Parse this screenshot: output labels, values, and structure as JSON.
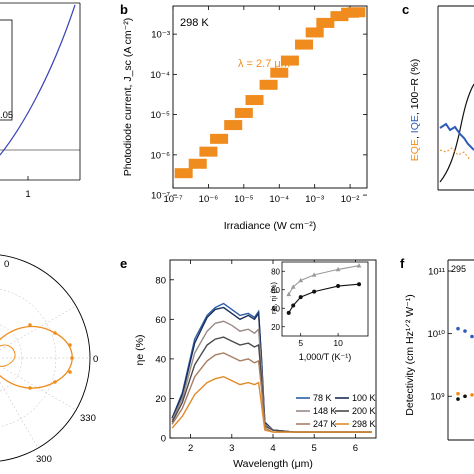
{
  "panels": {
    "b": {
      "letter": "b",
      "temperature_label": "298 K",
      "annotation": "λ = 2.7 μm",
      "xlabel": "Irradiance (W cm⁻²)",
      "ylabel": "Photodiode current, J_sc (A cm⁻²)",
      "x_ticks": [
        "10⁻⁷",
        "10⁻⁶",
        "10⁻⁵",
        "10⁻⁴",
        "10⁻³",
        "10⁻²"
      ],
      "y_ticks": [
        "10⁻⁷",
        "10⁻⁶",
        "10⁻⁵",
        "10⁻⁴",
        "10⁻³"
      ]
    },
    "c": {
      "letter": "c",
      "ylabel_parts": [
        "EQE",
        "IQE",
        "100−R (%)"
      ],
      "ylabel_sep": ", "
    },
    "e": {
      "letter": "e",
      "xlabel": "Wavelength (μm)",
      "ylabel": "ηe (%)",
      "x_ticks": [
        "2",
        "3",
        "4",
        "5",
        "6"
      ],
      "y_ticks": [
        "0",
        "20",
        "40",
        "60",
        "80"
      ],
      "inset_xlabel": "1,000/T (K⁻¹)",
      "inset_ylabel": "ηe, ηi (%)",
      "inset_x_ticks": [
        "5",
        "10"
      ],
      "inset_y_ticks": [
        "20",
        "40",
        "60",
        "80"
      ],
      "legend": [
        "78 K",
        "100 K",
        "148 K",
        "200 K",
        "247 K",
        "298 K"
      ]
    },
    "f": {
      "letter": "f",
      "ylabel": "Detectivity (cm Hz¹ᐟ² W⁻¹)",
      "y_ticks": [
        "10⁹",
        "10¹⁰",
        "10¹¹"
      ],
      "corner_label": "295"
    },
    "a_partial": {
      "x_tick": "1",
      "inset_label": ".05"
    },
    "d_partial": {
      "angle_labels": [
        "0",
        "330",
        "300"
      ]
    }
  },
  "colors": {
    "orange": "#f08c1e",
    "blue": "#2e5cb8",
    "series_e": [
      "#2b5ea7",
      "#1a2e5a",
      "#9a8a86",
      "#4a4a4a",
      "#a87e62",
      "#e08a2a"
    ],
    "inset_upper": "#9a9a9a",
    "inset_lower": "#111111",
    "panel_a_curve": "#3a43b8"
  },
  "chart_data": [
    {
      "panel": "b",
      "type": "scatter",
      "scale": "log-log",
      "xlim": [
        1e-07,
        0.03
      ],
      "ylim": [
        1.5e-07,
        0.005
      ],
      "series": [
        {
          "x": [
            2e-07,
            5e-07,
            1e-06,
            2e-06,
            5e-06,
            1e-05,
            2e-05,
            5e-05,
            0.0001,
            0.0002,
            0.0005,
            0.001,
            0.002,
            0.005,
            0.01,
            0.015
          ],
          "y": [
            3.5e-07,
            6e-07,
            1.2e-06,
            2.5e-06,
            5.5e-06,
            1.1e-05,
            2.3e-05,
            5.5e-05,
            0.00011,
            0.00022,
            0.00055,
            0.0011,
            0.0019,
            0.0028,
            0.0034,
            0.0035
          ]
        }
      ]
    },
    {
      "panel": "e",
      "type": "line",
      "xlim": [
        1.5,
        6.5
      ],
      "ylim": [
        0,
        90
      ],
      "series": [
        {
          "name": "78 K",
          "x": [
            1.55,
            1.8,
            2.1,
            2.4,
            2.6,
            2.8,
            3.0,
            3.2,
            3.4,
            3.55,
            3.65,
            3.72,
            3.8,
            4.0,
            4.5,
            5.0,
            5.5,
            6.0,
            6.4
          ],
          "y": [
            10,
            23,
            50,
            62,
            66,
            68,
            65,
            62,
            63,
            61,
            64,
            40,
            8,
            4,
            3,
            3,
            3,
            3,
            3
          ]
        },
        {
          "name": "100 K",
          "x": [
            1.55,
            1.8,
            2.1,
            2.4,
            2.6,
            2.8,
            3.0,
            3.2,
            3.4,
            3.55,
            3.65,
            3.72,
            3.8,
            4.0,
            4.5,
            5.0,
            5.5,
            6.0,
            6.4
          ],
          "y": [
            10,
            22,
            48,
            61,
            65,
            66,
            63,
            60,
            62,
            60,
            63,
            40,
            8,
            4,
            3,
            3,
            3,
            3,
            3
          ]
        },
        {
          "name": "148 K",
          "x": [
            1.55,
            1.8,
            2.1,
            2.4,
            2.6,
            2.8,
            3.0,
            3.2,
            3.4,
            3.55,
            3.65,
            3.72,
            3.8,
            4.0,
            4.5,
            5.0,
            5.5,
            6.0,
            6.4
          ],
          "y": [
            9,
            20,
            43,
            54,
            58,
            59,
            57,
            54,
            55,
            53,
            55,
            35,
            7,
            4,
            3,
            3,
            3,
            3,
            3
          ]
        },
        {
          "name": "200 K",
          "x": [
            1.55,
            1.8,
            2.1,
            2.4,
            2.6,
            2.8,
            3.0,
            3.2,
            3.4,
            3.55,
            3.65,
            3.72,
            3.8,
            4.0,
            4.5,
            5.0,
            5.5,
            6.0,
            6.4
          ],
          "y": [
            8,
            18,
            37,
            47,
            50,
            51,
            49,
            47,
            48,
            46,
            47,
            30,
            6,
            4,
            3,
            3,
            3,
            3,
            3
          ]
        },
        {
          "name": "247 K",
          "x": [
            1.55,
            1.8,
            2.1,
            2.4,
            2.6,
            2.8,
            3.0,
            3.2,
            3.4,
            3.55,
            3.65,
            3.72,
            3.8,
            4.0,
            4.5,
            5.0,
            5.5,
            6.0,
            6.4
          ],
          "y": [
            7,
            15,
            31,
            39,
            42,
            43,
            41,
            39,
            40,
            38,
            39,
            25,
            5,
            3,
            3,
            3,
            3,
            3,
            3
          ]
        },
        {
          "name": "298 K",
          "x": [
            1.55,
            1.8,
            2.1,
            2.4,
            2.6,
            2.8,
            3.0,
            3.2,
            3.4,
            3.55,
            3.65,
            3.72,
            3.8,
            4.0,
            4.5,
            5.0,
            5.5,
            6.0,
            6.4
          ],
          "y": [
            5,
            11,
            22,
            28,
            30,
            31,
            29,
            27,
            28,
            27,
            28,
            17,
            4,
            3,
            3,
            3,
            3,
            3,
            3
          ]
        }
      ]
    },
    {
      "panel": "e-inset",
      "type": "line",
      "xlim": [
        2.5,
        14
      ],
      "ylim": [
        10,
        90
      ],
      "series": [
        {
          "x": [
            3.4,
            4.0,
            5.0,
            6.8,
            10.0,
            12.8
          ],
          "y": [
            55,
            63,
            70,
            76,
            82,
            86
          ],
          "marker": "triangle"
        },
        {
          "x": [
            3.4,
            4.0,
            5.0,
            6.8,
            10.0,
            12.8
          ],
          "y": [
            35,
            43,
            52,
            58,
            64,
            66
          ],
          "marker": "circle"
        }
      ]
    },
    {
      "panel": "f",
      "type": "scatter",
      "scale": "log-y",
      "ylim": [
        200000000.0,
        150000000000.0
      ],
      "series": [
        {
          "y": [
            12000000000.0,
            11000000000.0,
            9000000000.0
          ],
          "color": "#2e5cb8"
        },
        {
          "y": [
            1100000000.0,
            1000000000.0,
            1050000000.0
          ],
          "color": "#f08c1e"
        },
        {
          "y": [
            900000000.0,
            1000000000.0
          ],
          "color": "#111111"
        }
      ]
    }
  ]
}
